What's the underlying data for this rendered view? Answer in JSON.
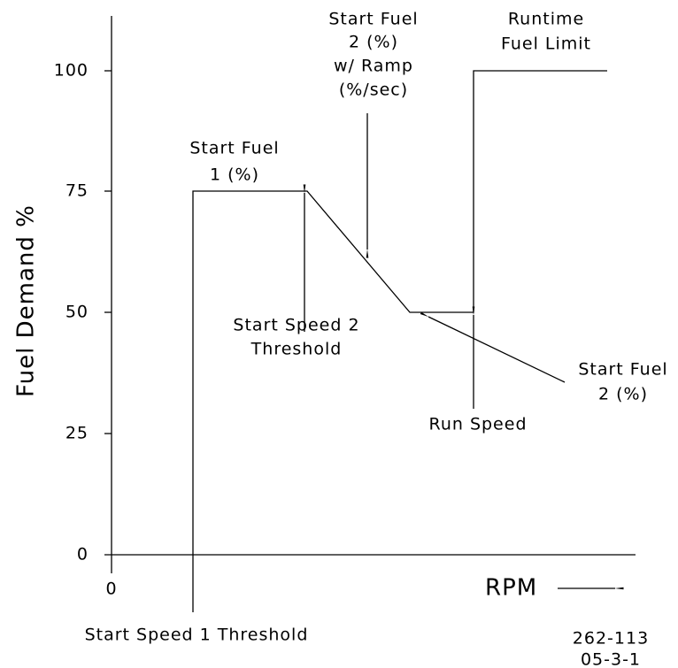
{
  "y_axis": {
    "label": "Fuel Demand %",
    "ticks": [
      "100",
      "75",
      "50",
      "25",
      "0"
    ]
  },
  "x_axis": {
    "origin": "0",
    "label": "RPM"
  },
  "annotations": {
    "start_fuel_1": [
      "Start Fuel",
      "1 (%)"
    ],
    "start_fuel_2_ramp": [
      "Start Fuel",
      "2 (%)",
      "w/ Ramp",
      "(%/sec)"
    ],
    "runtime_fuel_limit": [
      "Runtime",
      "Fuel Limit"
    ],
    "start_speed_2": [
      "Start Speed 2",
      "Threshold"
    ],
    "start_fuel_2": [
      "Start Fuel",
      "2 (%)"
    ],
    "run_speed": "Run Speed",
    "start_speed_1": "Start Speed 1 Threshold"
  },
  "figure_id": [
    "262-113",
    "05-3-1"
  ]
}
